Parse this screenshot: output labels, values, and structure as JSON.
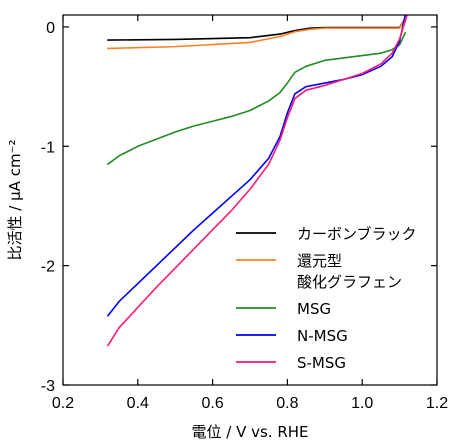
{
  "chart_data": {
    "type": "line",
    "xlabel": "電位 / V vs. RHE",
    "ylabel": "比活性 / μA cm⁻²",
    "xlim": [
      0.2,
      1.2
    ],
    "ylim": [
      -3,
      0.1
    ],
    "x_ticks": [
      "0.2",
      "0.4",
      "0.6",
      "0.8",
      "1.0",
      "1.2"
    ],
    "y_ticks": [
      "0",
      "-1",
      "-2",
      "-3"
    ],
    "x_tick_values": [
      0.2,
      0.4,
      0.6,
      0.8,
      1.0,
      1.2
    ],
    "y_tick_values": [
      0,
      -1,
      -2,
      -3
    ],
    "grid": false,
    "legend_position": "bottom-right",
    "series": [
      {
        "name": "カーボンブラック",
        "color": "#000000",
        "x": [
          0.32,
          0.5,
          0.7,
          0.78,
          0.82,
          0.86,
          0.9,
          1.0,
          1.1,
          1.11
        ],
        "y": [
          -0.11,
          -0.105,
          -0.09,
          -0.06,
          -0.03,
          -0.01,
          -0.005,
          -0.005,
          -0.005,
          0.05
        ]
      },
      {
        "name": "還元型\n酸化グラフェン",
        "color": "#ff7f27",
        "x": [
          0.32,
          0.5,
          0.7,
          0.78,
          0.82,
          0.86,
          0.9,
          1.0,
          1.1,
          1.11
        ],
        "y": [
          -0.18,
          -0.165,
          -0.13,
          -0.08,
          -0.04,
          -0.02,
          -0.01,
          -0.01,
          -0.01,
          0.05
        ]
      },
      {
        "name": "MSG",
        "color": "#228b22",
        "x": [
          0.32,
          0.35,
          0.4,
          0.45,
          0.5,
          0.55,
          0.6,
          0.65,
          0.7,
          0.75,
          0.78,
          0.8,
          0.82,
          0.85,
          0.9,
          0.95,
          1.0,
          1.05,
          1.08,
          1.1,
          1.115
        ],
        "y": [
          -1.15,
          -1.08,
          -1.0,
          -0.94,
          -0.88,
          -0.83,
          -0.79,
          -0.75,
          -0.7,
          -0.62,
          -0.55,
          -0.47,
          -0.38,
          -0.33,
          -0.28,
          -0.26,
          -0.24,
          -0.22,
          -0.19,
          -0.15,
          -0.05
        ]
      },
      {
        "name": "N-MSG",
        "color": "#0000ff",
        "x": [
          0.32,
          0.35,
          0.4,
          0.45,
          0.5,
          0.55,
          0.6,
          0.65,
          0.7,
          0.75,
          0.78,
          0.8,
          0.82,
          0.85,
          0.9,
          0.95,
          1.0,
          1.05,
          1.08,
          1.1,
          1.115
        ],
        "y": [
          -2.42,
          -2.3,
          -2.15,
          -2.0,
          -1.85,
          -1.7,
          -1.56,
          -1.42,
          -1.28,
          -1.1,
          -0.92,
          -0.72,
          -0.56,
          -0.5,
          -0.47,
          -0.44,
          -0.4,
          -0.33,
          -0.25,
          -0.12,
          0.1
        ]
      },
      {
        "name": "S-MSG",
        "color": "#ff1a75",
        "x": [
          0.32,
          0.35,
          0.4,
          0.45,
          0.5,
          0.55,
          0.6,
          0.65,
          0.7,
          0.75,
          0.78,
          0.8,
          0.82,
          0.85,
          0.9,
          0.95,
          1.0,
          1.05,
          1.08,
          1.1,
          1.12
        ],
        "y": [
          -2.67,
          -2.52,
          -2.35,
          -2.18,
          -2.02,
          -1.86,
          -1.7,
          -1.54,
          -1.36,
          -1.15,
          -0.95,
          -0.76,
          -0.6,
          -0.53,
          -0.49,
          -0.44,
          -0.39,
          -0.31,
          -0.22,
          -0.1,
          0.1
        ]
      }
    ]
  }
}
